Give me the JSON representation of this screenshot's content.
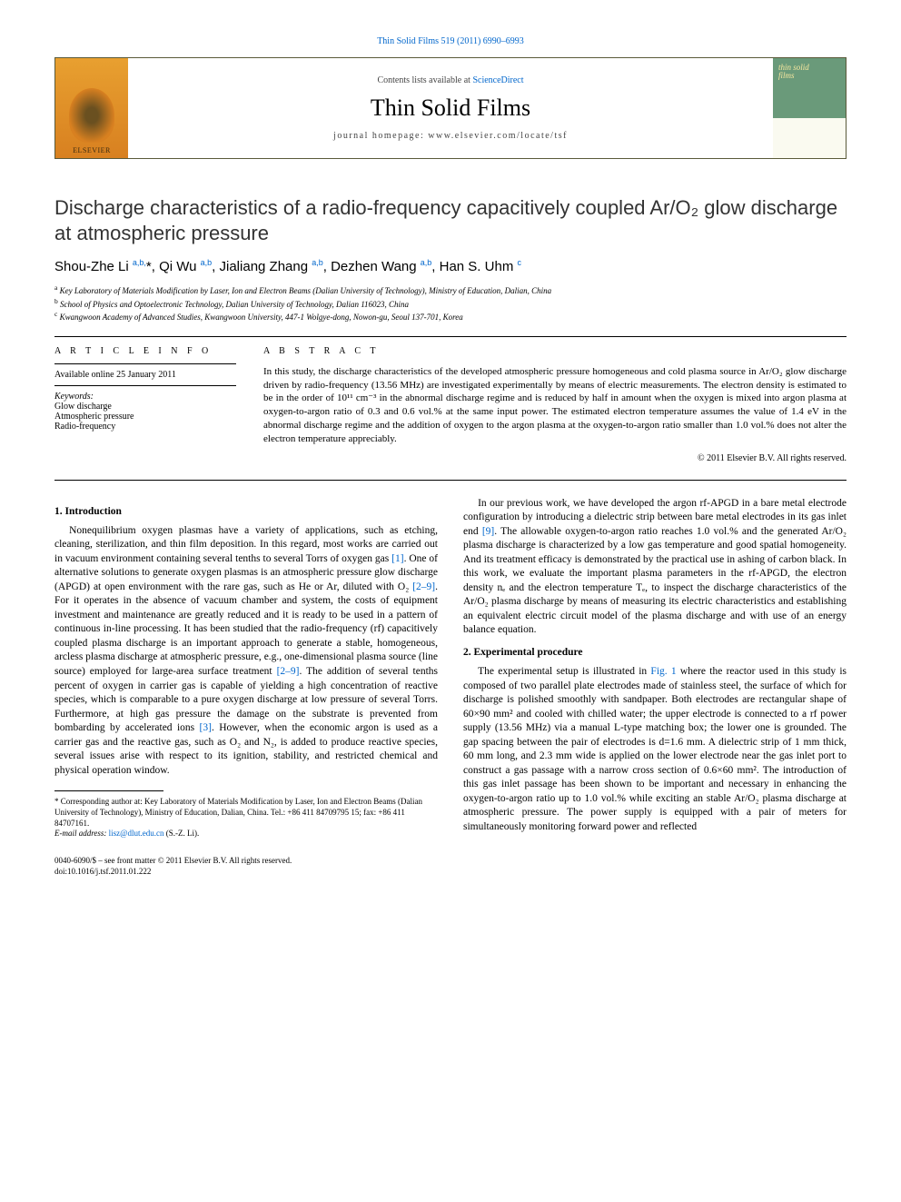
{
  "journal_citation": "Thin Solid Films 519 (2011) 6990–6993",
  "header": {
    "elsevier": "ELSEVIER",
    "contents_prefix": "Contents lists available at ",
    "contents_link": "ScienceDirect",
    "journal_name": "Thin Solid Films",
    "homepage": "journal homepage: www.elsevier.com/locate/tsf"
  },
  "title": "Discharge characteristics of a radio-frequency capacitively coupled Ar/O₂ glow discharge at atmospheric pressure",
  "authors_html": "Shou-Zhe Li <sup>a,b,</sup>*, Qi Wu <sup>a,b</sup>, Jialiang Zhang <sup>a,b</sup>, Dezhen Wang <sup>a,b</sup>, Han S. Uhm <sup>c</sup>",
  "affiliations": {
    "a": "Key Laboratory of Materials Modification by Laser, Ion and Electron Beams (Dalian University of Technology), Ministry of Education, Dalian, China",
    "b": "School of Physics and Optoelectronic Technology, Dalian University of Technology, Dalian 116023, China",
    "c": "Kwangwoon Academy of Advanced Studies, Kwangwoon University, 447-1 Wolgye-dong, Nowon-gu, Seoul 137-701, Korea"
  },
  "article_info": {
    "heading": "A R T I C L E   I N F O",
    "available": "Available online 25 January 2011",
    "keywords_label": "Keywords:",
    "keywords": [
      "Glow discharge",
      "Atmospheric pressure",
      "Radio-frequency"
    ]
  },
  "abstract": {
    "heading": "A B S T R A C T",
    "text": "In this study, the discharge characteristics of the developed atmospheric pressure homogeneous and cold plasma source in Ar/O₂ glow discharge driven by radio-frequency (13.56 MHz) are investigated experimentally by means of electric measurements. The electron density is estimated to be in the order of 10¹¹ cm⁻³ in the abnormal discharge regime and is reduced by half in amount when the oxygen is mixed into argon plasma at oxygen-to-argon ratio of 0.3 and 0.6 vol.% at the same input power. The estimated electron temperature assumes the value of 1.4 eV in the abnormal discharge regime and the addition of oxygen to the argon plasma at the oxygen-to-argon ratio smaller than 1.0 vol.% does not alter the electron temperature appreciably.",
    "copyright": "© 2011 Elsevier B.V. All rights reserved."
  },
  "sections": {
    "s1": {
      "heading": "1. Introduction",
      "p1": "Nonequilibrium oxygen plasmas have a variety of applications, such as etching, cleaning, sterilization, and thin film deposition. In this regard, most works are carried out in vacuum environment containing several tenths to several Torrs of oxygen gas [1]. One of alternative solutions to generate oxygen plasmas is an atmospheric pressure glow discharge (APGD) at open environment with the rare gas, such as He or Ar, diluted with O₂ [2–9]. For it operates in the absence of vacuum chamber and system, the costs of equipment investment and maintenance are greatly reduced and it is ready to be used in a pattern of continuous in-line processing. It has been studied that the radio-frequency (rf) capacitively coupled plasma discharge is an important approach to generate a stable, homogeneous, arcless plasma discharge at atmospheric pressure, e.g., one-dimensional plasma source (line source) employed for large-area surface treatment [2–9]. The addition of several tenths percent of oxygen in carrier gas is capable of yielding a high concentration of reactive species, which is comparable to a pure oxygen discharge at low pressure of several Torrs. Furthermore, at high gas pressure the damage on the substrate is prevented from bombarding by accelerated ions [3]. However, when the economic argon is used as a carrier gas and the reactive gas, such as O₂ and N₂, is added to produce reactive species, several issues arise with respect to its ignition, stability, and restricted chemical and physical operation window.",
      "p2": "In our previous work, we have developed the argon rf-APGD in a bare metal electrode configuration by introducing a dielectric strip between bare metal electrodes in its gas inlet end [9]. The allowable oxygen-to-argon ratio reaches 1.0 vol.% and the generated Ar/O₂ plasma discharge is characterized by a low gas temperature and good spatial homogeneity. And its treatment efficacy is demonstrated by the practical use in ashing of carbon black. In this work, we evaluate the important plasma parameters in the rf-APGD, the electron density nₑ and the electron temperature Tₑ, to inspect the discharge characteristics of the Ar/O₂ plasma discharge by means of measuring its electric characteristics and establishing an equivalent electric circuit model of the plasma discharge and with use of an energy balance equation."
    },
    "s2": {
      "heading": "2. Experimental procedure",
      "p1": "The experimental setup is illustrated in Fig. 1 where the reactor used in this study is composed of two parallel plate electrodes made of stainless steel, the surface of which for discharge is polished smoothly with sandpaper. Both electrodes are rectangular shape of 60×90 mm² and cooled with chilled water; the upper electrode is connected to a rf power supply (13.56 MHz) via a manual L-type matching box; the lower one is grounded. The gap spacing between the pair of electrodes is d=1.6 mm. A dielectric strip of 1 mm thick, 60 mm long, and 2.3 mm wide is applied on the lower electrode near the gas inlet port to construct a gas passage with a narrow cross section of 0.6×60 mm². The introduction of this gas inlet passage has been shown to be important and necessary in enhancing the oxygen-to-argon ratio up to 1.0 vol.% while exciting an stable Ar/O₂ plasma discharge at atmospheric pressure. The power supply is equipped with a pair of meters for simultaneously monitoring forward power and reflected"
    }
  },
  "footnotes": {
    "corr": "* Corresponding author at: Key Laboratory of Materials Modification by Laser, Ion and Electron Beams (Dalian University of Technology), Ministry of Education, Dalian, China. Tel.: +86 411 84709795 15; fax: +86 411 84707161.",
    "email_label": "E-mail address: ",
    "email": "lisz@dlut.edu.cn",
    "email_suffix": " (S.-Z. Li)."
  },
  "footer": {
    "line1": "0040-6090/$ – see front matter © 2011 Elsevier B.V. All rights reserved.",
    "line2": "doi:10.1016/j.tsf.2011.01.222"
  },
  "colors": {
    "link": "#0066cc",
    "text": "#000000",
    "border": "#5a5a3a",
    "elsevier_bg": "#d88020"
  }
}
